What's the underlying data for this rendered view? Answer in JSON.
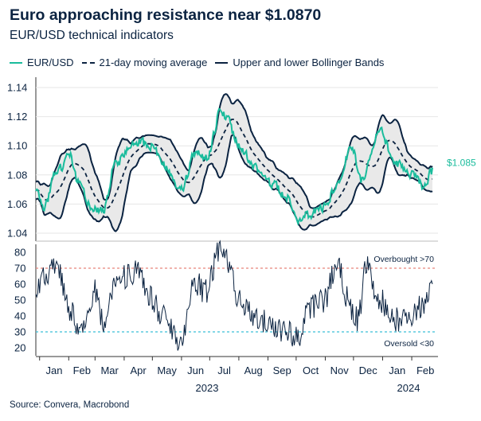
{
  "title": "Euro approaching resistance near $1.0870",
  "subtitle": "EUR/USD technical indicators",
  "source": "Source: Convera, Macrobond",
  "legend": [
    {
      "label": "EUR/USD",
      "style": "solid",
      "color": "#1abc9c"
    },
    {
      "label": "21-day moving average",
      "style": "dashed",
      "color": "#0b2341"
    },
    {
      "label": "Upper and lower Bollinger Bands",
      "style": "solid",
      "color": "#0b2341"
    }
  ],
  "colors": {
    "eurusd": "#1abc9c",
    "dark": "#0b2341",
    "band_fill": "#e9e9e9",
    "overbought": "#e8837a",
    "oversold": "#3bbfd8",
    "grid": "#e6e6e6"
  },
  "chart_data": [
    {
      "type": "line",
      "y_ticks": [
        "1.14",
        "1.12",
        "1.10",
        "1.08",
        "1.06",
        "1.04"
      ],
      "ylim": [
        1.04,
        1.14
      ],
      "xlim": [
        "2022-12-28",
        "2024-02-23"
      ],
      "grid": true,
      "legend_placement": "top",
      "last_value_label": "$1.085",
      "x_anchors": [
        [
          "2022-12-28",
          1.068
        ],
        [
          "2023-01-05",
          1.057
        ],
        [
          "2023-01-18",
          1.081
        ],
        [
          "2023-02-02",
          1.094
        ],
        [
          "2023-02-10",
          1.074
        ],
        [
          "2023-02-24",
          1.058
        ],
        [
          "2023-03-08",
          1.055
        ],
        [
          "2023-03-23",
          1.089
        ],
        [
          "2023-04-14",
          1.103
        ],
        [
          "2023-04-28",
          1.1
        ],
        [
          "2023-05-15",
          1.086
        ],
        [
          "2023-05-31",
          1.069
        ],
        [
          "2023-06-15",
          1.095
        ],
        [
          "2023-06-26",
          1.091
        ],
        [
          "2023-07-13",
          1.124
        ],
        [
          "2023-07-18",
          1.12
        ],
        [
          "2023-08-01",
          1.099
        ],
        [
          "2023-08-18",
          1.085
        ],
        [
          "2023-09-05",
          1.073
        ],
        [
          "2023-09-20",
          1.066
        ],
        [
          "2023-10-03",
          1.048
        ],
        [
          "2023-10-13",
          1.052
        ],
        [
          "2023-10-31",
          1.058
        ],
        [
          "2023-11-10",
          1.07
        ],
        [
          "2023-11-29",
          1.099
        ],
        [
          "2023-12-08",
          1.076
        ],
        [
          "2023-12-28",
          1.11
        ],
        [
          "2024-01-16",
          1.087
        ],
        [
          "2024-02-01",
          1.081
        ],
        [
          "2024-02-14",
          1.072
        ],
        [
          "2024-02-23",
          1.085
        ]
      ],
      "series": [
        {
          "name": "EUR/USD",
          "style": "solid",
          "color": "#1abc9c"
        },
        {
          "name": "21-day moving average",
          "style": "dashed",
          "color": "#0b2341"
        },
        {
          "name": "Upper and lower Bollinger Bands",
          "style": "solid",
          "color": "#0b2341"
        }
      ]
    },
    {
      "type": "line",
      "y_ticks": [
        "80",
        "70",
        "60",
        "50",
        "40",
        "30",
        "20"
      ],
      "ylim": [
        18,
        85
      ],
      "grid": false,
      "reference_lines": [
        {
          "value": 70,
          "label": "Overbought >70",
          "color": "#e8837a"
        },
        {
          "value": 30,
          "label": "Oversold <30",
          "color": "#3bbfd8"
        }
      ],
      "x_anchors": [
        [
          "2022-12-28",
          55
        ],
        [
          "2023-01-04",
          66
        ],
        [
          "2023-01-20",
          70
        ],
        [
          "2023-02-02",
          45
        ],
        [
          "2023-02-14",
          30
        ],
        [
          "2023-03-01",
          55
        ],
        [
          "2023-03-10",
          35
        ],
        [
          "2023-03-23",
          63
        ],
        [
          "2023-04-14",
          67
        ],
        [
          "2023-04-28",
          52
        ],
        [
          "2023-05-10",
          42
        ],
        [
          "2023-05-31",
          25
        ],
        [
          "2023-06-15",
          62
        ],
        [
          "2023-06-26",
          55
        ],
        [
          "2023-07-13",
          83
        ],
        [
          "2023-07-19",
          75
        ],
        [
          "2023-08-01",
          50
        ],
        [
          "2023-08-18",
          38
        ],
        [
          "2023-09-05",
          35
        ],
        [
          "2023-09-20",
          30
        ],
        [
          "2023-10-03",
          27
        ],
        [
          "2023-10-13",
          45
        ],
        [
          "2023-10-31",
          50
        ],
        [
          "2023-11-13",
          72
        ],
        [
          "2023-11-29",
          45
        ],
        [
          "2023-12-06",
          38
        ],
        [
          "2023-12-14",
          72
        ],
        [
          "2023-12-28",
          50
        ],
        [
          "2024-01-16",
          38
        ],
        [
          "2024-02-01",
          40
        ],
        [
          "2024-02-14",
          48
        ],
        [
          "2024-02-23",
          60
        ]
      ]
    }
  ],
  "x_axis": {
    "months": [
      "Jan",
      "Feb",
      "Mar",
      "Apr",
      "May",
      "Jun",
      "Jul",
      "Aug",
      "Sep",
      "Oct",
      "Nov",
      "Dec",
      "Jan",
      "Feb"
    ],
    "years": [
      "2023",
      "2024"
    ]
  }
}
